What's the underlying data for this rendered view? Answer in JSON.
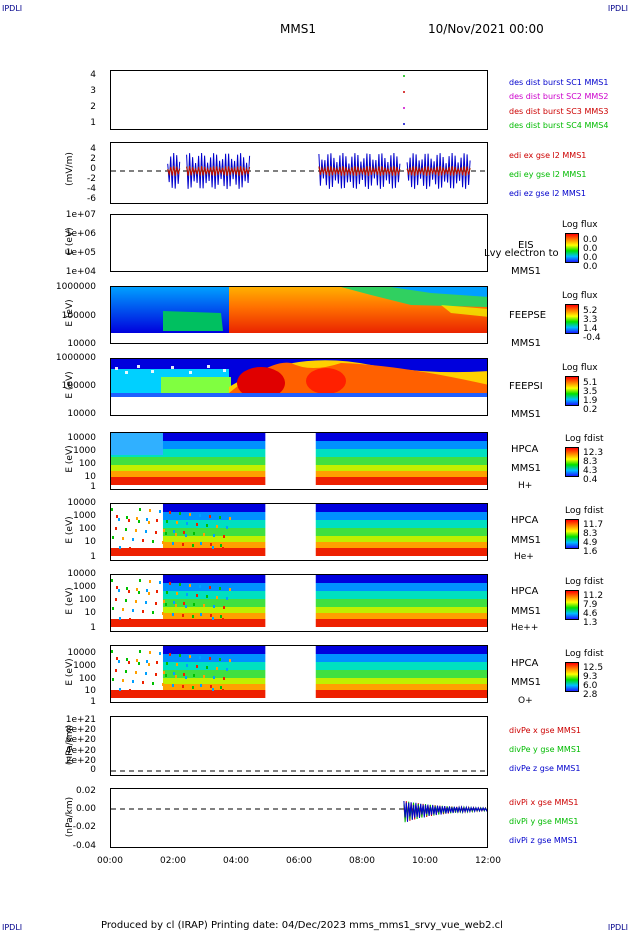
{
  "corner_labels": {
    "tl": "IPDLI",
    "tr": "IPDLI",
    "bl": "IPDLI",
    "br": "IPDLI"
  },
  "header": {
    "mission": "MMS1",
    "datetime": "10/Nov/2021 00:00"
  },
  "footer": "Produced by cl (IRAP)   Printing date: 04/Dec/2023   mms_mms1_srvy_vue_web2.cl",
  "colors": {
    "mms1": "#0000cc",
    "mms2": "#cc00cc",
    "mms3": "#cc0000",
    "mms4": "#00bb00",
    "x": "#cc0000",
    "y": "#00bb00",
    "z": "#0000cc"
  },
  "panels": [
    {
      "id": "dist",
      "ylabel": "",
      "ticks": [
        "4",
        "3",
        "2",
        "1"
      ],
      "legend": [
        "des dist burst SC1 MMS1",
        "des dist burst SC2 MMS2",
        "des dist burst SC3 MMS3",
        "des dist burst SC4 MMS4"
      ]
    },
    {
      "id": "edi",
      "ylabel": "(mV/m)",
      "ticks": [
        "4",
        "2",
        "0",
        "-2",
        "-4",
        "-6"
      ],
      "legend": [
        "edi ex gse l2 MMS1",
        "edi ey gse l2 MMS1",
        "edi ez gse l2 MMS1"
      ]
    },
    {
      "id": "eis",
      "ylabel": "E (eV)",
      "ticks": [
        "1e+07",
        "1e+06",
        "1e+05",
        "1e+04"
      ],
      "side": [
        "EIS",
        "MMS1"
      ],
      "overlay": "Lvy electron to",
      "cb_title": "Log flux",
      "cb_values": [
        "0.0",
        "0.0",
        "0.0",
        "0.0"
      ]
    },
    {
      "id": "feepse",
      "ylabel": "E (eV)",
      "ticks": [
        "1000000",
        "100000",
        "10000"
      ],
      "side": [
        "FEEPSE",
        "MMS1"
      ],
      "cb_title": "Log flux",
      "cb_values": [
        "5.2",
        "3.3",
        "1.4",
        "-0.4"
      ]
    },
    {
      "id": "feepsi",
      "ylabel": "E (eV)",
      "ticks": [
        "1000000",
        "100000",
        "10000"
      ],
      "side": [
        "FEEPSI",
        "MMS1"
      ],
      "cb_title": "Log flux",
      "cb_values": [
        "5.1",
        "3.5",
        "1.9",
        "0.2"
      ]
    },
    {
      "id": "hpca_h",
      "ylabel": "E (eV)",
      "ticks": [
        "10000",
        "1000",
        "100",
        "10",
        "1"
      ],
      "side": [
        "HPCA",
        "MMS1",
        "H+"
      ],
      "cb_title": "Log fdist",
      "cb_values": [
        "12.3",
        "8.3",
        "4.3",
        "0.4"
      ]
    },
    {
      "id": "hpca_he1",
      "ylabel": "E (eV)",
      "ticks": [
        "10000",
        "1000",
        "100",
        "10",
        "1"
      ],
      "side": [
        "HPCA",
        "MMS1",
        "He+"
      ],
      "cb_title": "Log fdist",
      "cb_values": [
        "11.7",
        "8.3",
        "4.9",
        "1.6"
      ]
    },
    {
      "id": "hpca_he2",
      "ylabel": "E (eV)",
      "ticks": [
        "10000",
        "1000",
        "100",
        "10",
        "1"
      ],
      "side": [
        "HPCA",
        "MMS1",
        "He++"
      ],
      "cb_title": "Log fdist",
      "cb_values": [
        "11.2",
        "7.9",
        "4.6",
        "1.3"
      ]
    },
    {
      "id": "hpca_o",
      "ylabel": "E (eV)",
      "ticks": [
        "10000",
        "1000",
        "100",
        "10",
        "1"
      ],
      "side": [
        "HPCA",
        "MMS1",
        "O+"
      ],
      "cb_title": "Log fdist",
      "cb_values": [
        "12.5",
        "9.3",
        "6.0",
        "2.8"
      ]
    },
    {
      "id": "divpe",
      "ylabel": "(nPa/km)",
      "ticks": [
        "1e+21",
        "8e+20",
        "6e+20",
        "4e+20",
        "2e+20",
        "0"
      ],
      "legend": [
        "divPe x gse MMS1",
        "divPe y gse MMS1",
        "divPe z gse MMS1"
      ]
    },
    {
      "id": "divpi",
      "ylabel": "(nPa/km)",
      "ticks": [
        "0.02",
        "0.00",
        "-0.02",
        "-0.04"
      ],
      "legend": [
        "divPi x gse MMS1",
        "divPi y gse MMS1",
        "divPi z gse MMS1"
      ]
    }
  ],
  "chart_data": {
    "type": "heatmap",
    "x_ticks": [
      "00:00",
      "02:00",
      "04:00",
      "06:00",
      "08:00",
      "10:00",
      "12:00"
    ],
    "x_range_hours": [
      0,
      12
    ],
    "hpca_data_gap_hours": [
      4.9,
      6.5
    ],
    "feeps_transition_hours": [
      1.7,
      3.6
    ],
    "dist_burst_marker_hour": 9.3,
    "divpi_onset_hour": 9.3
  }
}
